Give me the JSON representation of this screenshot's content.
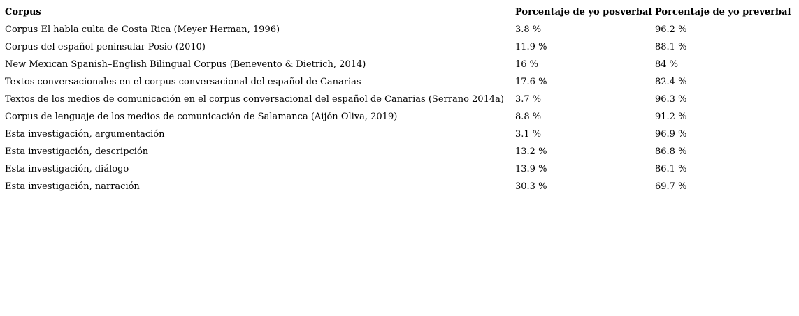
{
  "table": {
    "columns": [
      {
        "key": "corpus",
        "label": "Corpus"
      },
      {
        "key": "posverbal",
        "label": "Porcentaje de yo posverbal"
      },
      {
        "key": "preverbal",
        "label": "Porcentaje de yo preverbal"
      }
    ],
    "rows": [
      {
        "corpus": "Corpus El habla culta de Costa Rica (Meyer Herman, 1996)",
        "posverbal": "3.8 %",
        "preverbal": "96.2 %"
      },
      {
        "corpus": "Corpus del español peninsular Posio (2010)",
        "posverbal": "11.9 %",
        "preverbal": "88.1 %"
      },
      {
        "corpus": "New Mexican Spanish–English Bilingual Corpus (Benevento & Dietrich, 2014)",
        "posverbal": "16 %",
        "preverbal": "84 %"
      },
      {
        "corpus": "Textos conversacionales en el corpus conversacional del español de Canarias",
        "posverbal": "17.6 %",
        "preverbal": "82.4 %"
      },
      {
        "corpus": "Textos de los medios de comunicación en el corpus conversacional del español de Canarias (Serrano 2014a)",
        "posverbal": "3.7 %",
        "preverbal": "96.3 %"
      },
      {
        "corpus": "Corpus de lenguaje de los medios de comunicación de Salamanca (Aijón Oliva, 2019)",
        "posverbal": "8.8 %",
        "preverbal": "91.2 %"
      },
      {
        "corpus": "Esta investigación, argumentación",
        "posverbal": "3.1 %",
        "preverbal": "96.9 %"
      },
      {
        "corpus": "Esta investigación, descripción",
        "posverbal": "13.2 %",
        "preverbal": "86.8 %"
      },
      {
        "corpus": "Esta investigación, diálogo",
        "posverbal": "13.9 %",
        "preverbal": "86.1 %"
      },
      {
        "corpus": "Esta investigación, narración",
        "posverbal": "30.3 %",
        "preverbal": "69.7 %"
      }
    ],
    "colors": {
      "background": "#ffffff",
      "text": "#000000"
    }
  }
}
